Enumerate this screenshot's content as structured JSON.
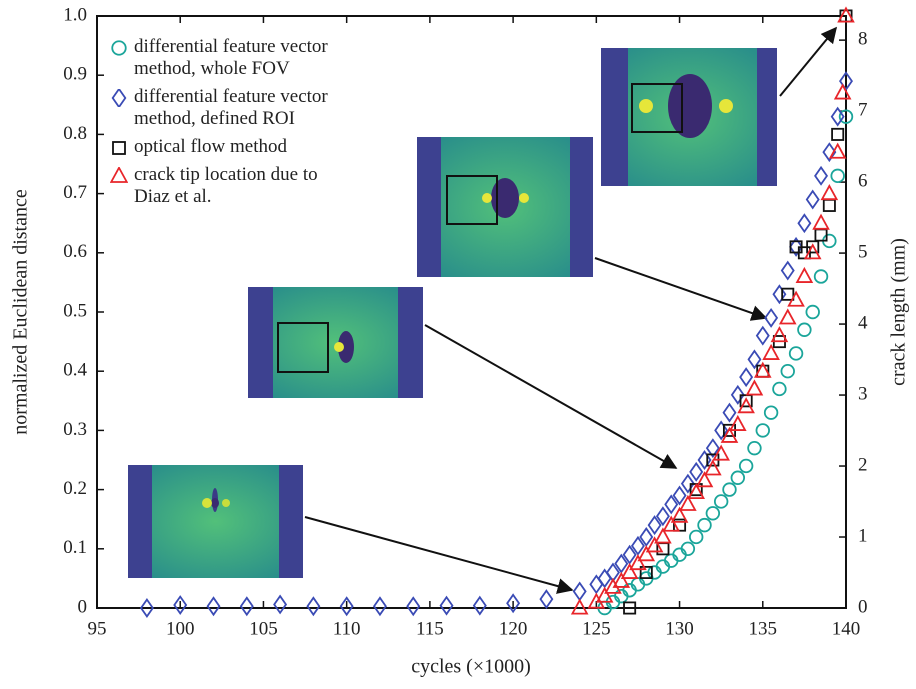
{
  "chart_data": {
    "type": "scatter",
    "x_label": "cycles (×1000)",
    "y_label": "normalized Euclidean distance",
    "y2_label": "crack length (mm)",
    "xlim": [
      95,
      140
    ],
    "xticks": [
      95,
      100,
      105,
      110,
      115,
      120,
      125,
      130,
      135,
      140
    ],
    "ylim": [
      0,
      1
    ],
    "yticks": [
      0,
      0.1,
      0.2,
      0.3,
      0.4,
      0.5,
      0.6,
      0.7,
      0.8,
      0.9,
      {
        "value": 1,
        "label": "1.0"
      }
    ],
    "y2lim": [
      0,
      8.34
    ],
    "y2ticks": [
      0,
      1,
      2,
      3,
      4,
      5,
      6,
      7,
      8
    ],
    "series": [
      {
        "name": "differential feature vector method, whole FOV",
        "color": "#1aa59a",
        "marker": "circle",
        "x": [
          125.5,
          126,
          126.5,
          127,
          127.5,
          128,
          128.5,
          129,
          129.5,
          130,
          130.5,
          131,
          131.5,
          132,
          132.5,
          133,
          133.5,
          134,
          134.5,
          135,
          135.5,
          136,
          136.5,
          137,
          137.5,
          138,
          138.5,
          139,
          139.5,
          140
        ],
        "values": [
          0.0,
          0.01,
          0.02,
          0.03,
          0.04,
          0.05,
          0.06,
          0.07,
          0.08,
          0.09,
          0.1,
          0.12,
          0.14,
          0.16,
          0.18,
          0.2,
          0.22,
          0.24,
          0.27,
          0.3,
          0.33,
          0.37,
          0.4,
          0.43,
          0.47,
          0.5,
          0.56,
          0.62,
          0.73,
          0.83
        ]
      },
      {
        "name": "differential feature vector method, defined ROI",
        "color": "#3a4bb5",
        "marker": "diamond",
        "x": [
          98,
          100,
          102,
          104,
          106,
          108,
          110,
          112,
          114,
          116,
          118,
          120,
          122,
          124,
          125,
          125.5,
          126,
          126.5,
          127,
          127.5,
          128,
          128.5,
          129,
          129.5,
          130,
          130.5,
          131,
          131.5,
          132,
          132.5,
          133,
          133.5,
          134,
          134.5,
          135,
          135.5,
          136,
          136.5,
          137,
          137.5,
          138,
          138.5,
          139,
          139.5,
          140
        ],
        "values": [
          0,
          0.005,
          0.003,
          0.003,
          0.006,
          0.003,
          0.003,
          0.003,
          0.003,
          0.004,
          0.004,
          0.008,
          0.015,
          0.028,
          0.04,
          0.05,
          0.06,
          0.075,
          0.09,
          0.105,
          0.12,
          0.14,
          0.155,
          0.175,
          0.19,
          0.21,
          0.23,
          0.25,
          0.27,
          0.3,
          0.33,
          0.36,
          0.39,
          0.42,
          0.46,
          0.49,
          0.53,
          0.57,
          0.61,
          0.65,
          0.69,
          0.73,
          0.77,
          0.83,
          0.89
        ]
      },
      {
        "name": "optical flow method",
        "color": "#111111",
        "marker": "square",
        "x": [
          127,
          128,
          129,
          130,
          131,
          132,
          133,
          134,
          135,
          136,
          136.5,
          137,
          137.5,
          138,
          138.5,
          139,
          139.5,
          140
        ],
        "values": [
          0,
          0.06,
          0.1,
          0.14,
          0.2,
          0.25,
          0.3,
          0.35,
          0.4,
          0.45,
          0.53,
          0.61,
          0.6,
          0.61,
          0.63,
          0.68,
          0.8,
          1.0
        ]
      },
      {
        "name": "crack tip location due to Diaz et al.",
        "color": "#e8252a",
        "marker": "triangle",
        "x": [
          124,
          125,
          125.5,
          126,
          126.5,
          127,
          127.5,
          128,
          128.5,
          129,
          129.5,
          130,
          130.5,
          131,
          131.5,
          132,
          132.5,
          133,
          133.5,
          134,
          134.5,
          135,
          135.5,
          136,
          136.5,
          137,
          137.5,
          138,
          138.5,
          139,
          139.5,
          139.8,
          140
        ],
        "values": [
          0,
          0.01,
          0.02,
          0.035,
          0.045,
          0.06,
          0.075,
          0.09,
          0.105,
          0.12,
          0.14,
          0.155,
          0.175,
          0.195,
          0.215,
          0.235,
          0.26,
          0.29,
          0.31,
          0.34,
          0.37,
          0.4,
          0.43,
          0.46,
          0.49,
          0.52,
          0.56,
          0.6,
          0.65,
          0.7,
          0.77,
          0.87,
          1.0
        ]
      }
    ]
  }
}
